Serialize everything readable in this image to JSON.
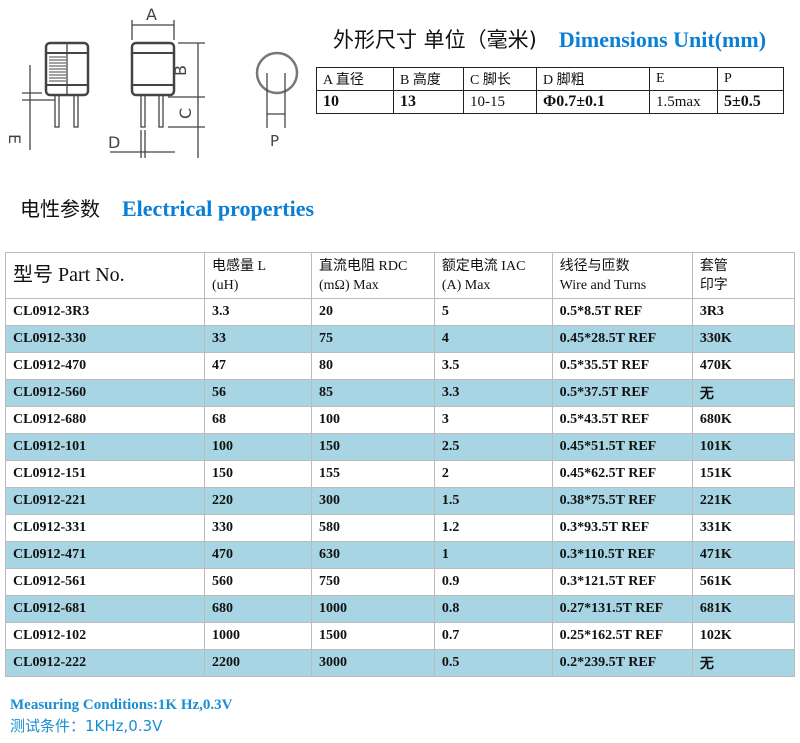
{
  "drawing": {
    "labels": [
      "A",
      "B",
      "C",
      "D",
      "E",
      "P"
    ]
  },
  "dimensions": {
    "title_cn": "外形尺寸  单位（毫米)",
    "title_en": "Dimensions Unit(mm)",
    "headers": [
      "A 直径",
      "B 高度",
      "C 脚长",
      "D 脚粗",
      "E",
      "P"
    ],
    "values": [
      "10",
      "13",
      "10-15",
      "Φ0.7±0.1",
      "1.5max",
      "5±0.5"
    ]
  },
  "electrical": {
    "title_cn": "电性参数",
    "title_en": "Electrical properties",
    "headers": [
      "型号 Part No.",
      "电感量 L\n(uH)",
      "直流电阻  RDC\n(mΩ)  Max",
      "额定电流  IAC\n(A) Max",
      "线径与匝数\nWire and Turns",
      "套管\n印字"
    ],
    "rows": [
      [
        "CL0912-3R3",
        "3.3",
        "20",
        "5",
        "0.5*8.5T REF",
        "3R3"
      ],
      [
        "CL0912-330",
        "33",
        "75",
        "4",
        "0.45*28.5T REF",
        "330K"
      ],
      [
        "CL0912-470",
        "47",
        "80",
        "3.5",
        "0.5*35.5T REF",
        "470K"
      ],
      [
        "CL0912-560",
        "56",
        "85",
        "3.3",
        "0.5*37.5T REF",
        "无"
      ],
      [
        "CL0912-680",
        "68",
        "100",
        "3",
        "0.5*43.5T REF",
        "680K"
      ],
      [
        "CL0912-101",
        "100",
        "150",
        "2.5",
        "0.45*51.5T REF",
        "101K"
      ],
      [
        "CL0912-151",
        "150",
        "155",
        "2",
        "0.45*62.5T REF",
        "151K"
      ],
      [
        "CL0912-221",
        "220",
        "300",
        "1.5",
        "0.38*75.5T REF",
        "221K"
      ],
      [
        "CL0912-331",
        "330",
        "580",
        "1.2",
        "0.3*93.5T REF",
        "331K"
      ],
      [
        "CL0912-471",
        "470",
        "630",
        "1",
        "0.3*110.5T REF",
        "471K"
      ],
      [
        "CL0912-561",
        "560",
        "750",
        "0.9",
        "0.3*121.5T REF",
        "561K"
      ],
      [
        "CL0912-681",
        "680",
        "1000",
        "0.8",
        "0.27*131.5T REF",
        "681K"
      ],
      [
        "CL0912-102",
        "1000",
        "1500",
        "0.7",
        "0.25*162.5T REF",
        "102K"
      ],
      [
        "CL0912-222",
        "2200",
        "3000",
        "0.5",
        "0.2*239.5T REF",
        "无"
      ]
    ],
    "alt_row_color": "#a8d5e3"
  },
  "footer": {
    "line_en": "Measuring Conditions:1K Hz,0.3V",
    "line_cn": "测试条件：1KHz,0.3V",
    "color": "#1a8fd0"
  }
}
